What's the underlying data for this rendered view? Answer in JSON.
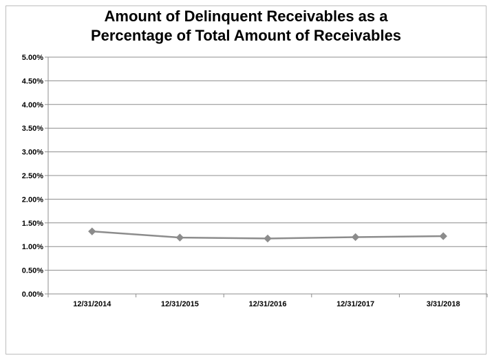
{
  "chart_data": {
    "type": "line",
    "title": "Amount of Delinquent Receivables as a\nPercentage of Total Amount of Receivables",
    "categories": [
      "12/31/2014",
      "12/31/2015",
      "12/31/2016",
      "12/31/2017",
      "3/31/2018"
    ],
    "series": [
      {
        "values": [
          1.32,
          1.19,
          1.17,
          1.2,
          1.22
        ]
      }
    ],
    "ylim": [
      0,
      5
    ],
    "ytick_step": 0.5,
    "ytick_format": "percent_2dp",
    "grid": true,
    "legend": "none",
    "line_color": "#8c8c8c",
    "grid_color": "#8c8c8c"
  }
}
